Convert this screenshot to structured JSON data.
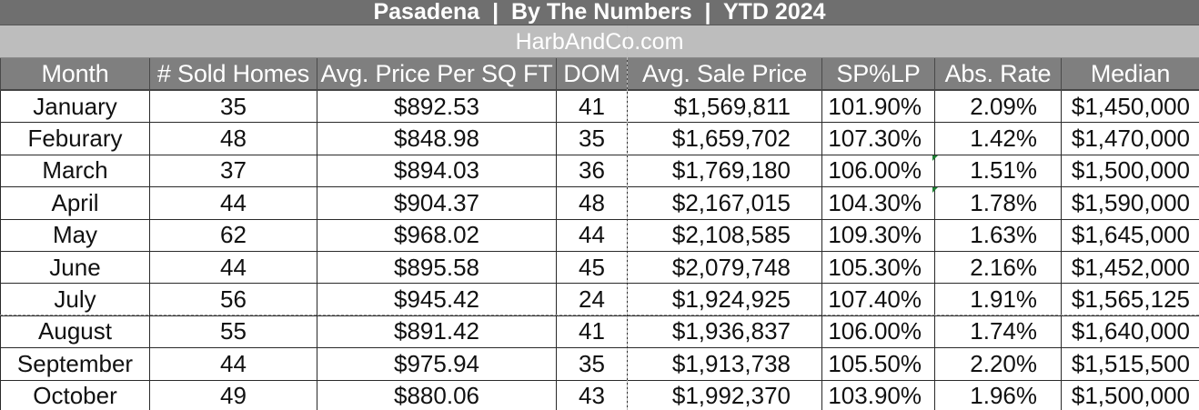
{
  "title": "Pasadena  |  By The Numbers  |  YTD 2024",
  "site": "HarbAndCo.com",
  "columns": [
    "Month",
    "# Sold Homes",
    "Avg. Price Per SQ FT",
    "DOM",
    "Avg. Sale Price",
    "SP%LP",
    "Abs. Rate",
    "Median"
  ],
  "rows": [
    [
      "January",
      "35",
      "$892.53",
      "41",
      "$1,569,811",
      "101.90%",
      "2.09%",
      "$1,450,000"
    ],
    [
      "Feburary",
      "48",
      "$848.98",
      "35",
      "$1,659,702",
      "107.30%",
      "1.42%",
      "$1,470,000"
    ],
    [
      "March",
      "37",
      "$894.03",
      "36",
      "$1,769,180",
      "106.00%",
      "1.51%",
      "$1,500,000"
    ],
    [
      "April",
      "44",
      "$904.37",
      "48",
      "$2,167,015",
      "104.30%",
      "1.78%",
      "$1,590,000"
    ],
    [
      "May",
      "62",
      "$968.02",
      "44",
      "$2,108,585",
      "109.30%",
      "1.63%",
      "$1,645,000"
    ],
    [
      "June",
      "44",
      "$895.58",
      "45",
      "$2,079,748",
      "105.30%",
      "2.16%",
      "$1,452,000"
    ],
    [
      "July",
      "56",
      "$945.42",
      "24",
      "$1,924,925",
      "107.40%",
      "1.91%",
      "$1,565,125"
    ],
    [
      "August",
      "55",
      "$891.42",
      "41",
      "$1,936,837",
      "106.00%",
      "1.74%",
      "$1,640,000"
    ],
    [
      "September",
      "44",
      "$975.94",
      "35",
      "$1,913,738",
      "105.50%",
      "2.20%",
      "$1,515,500"
    ],
    [
      "October",
      "49",
      "$880.06",
      "43",
      "$1,992,370",
      "103.90%",
      "1.96%",
      "$1,500,000"
    ]
  ]
}
